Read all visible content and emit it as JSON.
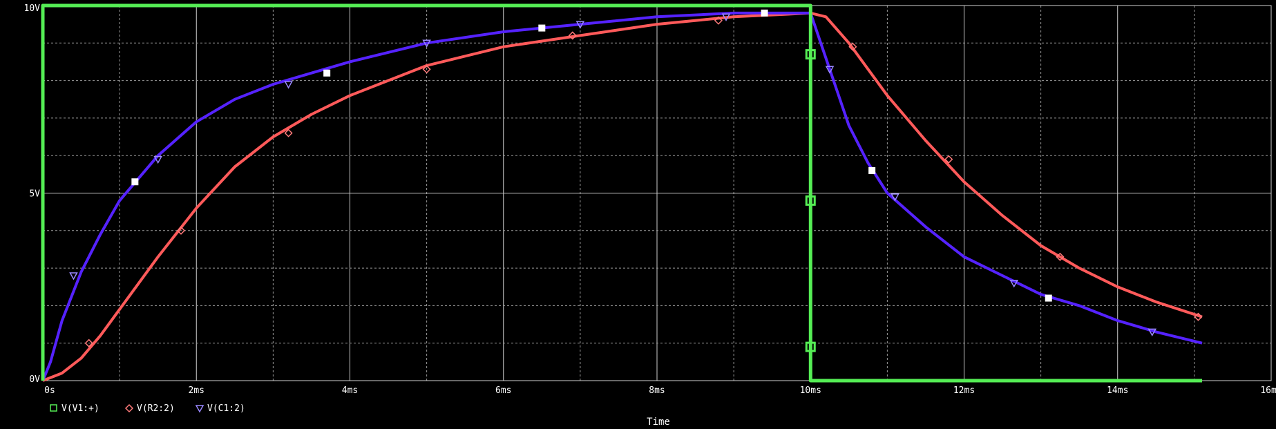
{
  "chart_data": {
    "type": "line",
    "xlabel": "Time",
    "ylabel": "",
    "xlim": [
      0,
      16
    ],
    "ylim": [
      0,
      10
    ],
    "x_ticks": [
      {
        "value": 0,
        "label": "0s"
      },
      {
        "value": 2,
        "label": "2ms"
      },
      {
        "value": 4,
        "label": "4ms"
      },
      {
        "value": 6,
        "label": "6ms"
      },
      {
        "value": 8,
        "label": "8ms"
      },
      {
        "value": 10,
        "label": "10ms"
      },
      {
        "value": 12,
        "label": "12ms"
      },
      {
        "value": 14,
        "label": "14ms"
      },
      {
        "value": 16,
        "label": "16ms"
      }
    ],
    "y_ticks": [
      {
        "value": 0,
        "label": "0V"
      },
      {
        "value": 5,
        "label": "5V"
      },
      {
        "value": 10,
        "label": "10V"
      }
    ],
    "grid": true,
    "legend": "bottom-left",
    "colors": {
      "background": "#000000",
      "grid": "#d0d0d0",
      "v1": "#55ee55",
      "r2": "#ff5a5a",
      "c1": "#5522ff",
      "marker_white": "#ffffff"
    },
    "series": [
      {
        "name": "V(V1:+)",
        "marker": "square",
        "x": [
          0,
          0,
          10,
          10,
          15.1
        ],
        "y": [
          0,
          10,
          10,
          0,
          0
        ],
        "markers_x": [
          10,
          10,
          10
        ],
        "markers_y": [
          8.7,
          4.8,
          0.9
        ]
      },
      {
        "name": "V(R2:2)",
        "marker": "diamond",
        "x": [
          0,
          0.25,
          0.5,
          0.75,
          1,
          1.5,
          2,
          2.5,
          3,
          3.5,
          4,
          5,
          6,
          7,
          8,
          9,
          10,
          10.2,
          10.5,
          11,
          11.5,
          12,
          12.5,
          13,
          13.5,
          14,
          14.5,
          15.1
        ],
        "y": [
          0,
          0.2,
          0.6,
          1.2,
          1.9,
          3.3,
          4.6,
          5.7,
          6.5,
          7.1,
          7.6,
          8.4,
          8.9,
          9.2,
          9.5,
          9.7,
          9.8,
          9.7,
          9.0,
          7.6,
          6.4,
          5.3,
          4.4,
          3.6,
          3.0,
          2.5,
          2.1,
          1.7
        ],
        "markers_x": [
          0.6,
          1.8,
          3.2,
          5.0,
          6.9,
          8.8,
          10.55,
          11.8,
          13.25,
          15.05
        ],
        "markers_y": [
          1.0,
          4.0,
          6.6,
          8.3,
          9.2,
          9.6,
          8.9,
          5.9,
          3.3,
          1.7
        ]
      },
      {
        "name": "V(C1:2)",
        "marker": "triangle",
        "x": [
          0,
          0.1,
          0.25,
          0.5,
          0.75,
          1,
          1.5,
          2,
          2.5,
          3,
          3.5,
          4,
          5,
          6,
          7,
          8,
          9,
          10,
          10.25,
          10.5,
          10.75,
          11,
          11.5,
          12,
          12.5,
          13,
          13.5,
          14,
          14.5,
          15.1
        ],
        "y": [
          0,
          0.5,
          1.6,
          2.9,
          3.9,
          4.8,
          6.0,
          6.9,
          7.5,
          7.9,
          8.2,
          8.5,
          9.0,
          9.3,
          9.5,
          9.7,
          9.8,
          9.8,
          8.3,
          6.8,
          5.8,
          5.0,
          4.1,
          3.3,
          2.8,
          2.3,
          2.0,
          1.6,
          1.3,
          1.0
        ],
        "markers_x": [
          0.4,
          1.5,
          3.2,
          5.0,
          7.0,
          8.9,
          10.25,
          11.1,
          12.65,
          14.45
        ],
        "markers_y": [
          2.8,
          5.9,
          7.9,
          9.0,
          9.5,
          9.7,
          8.3,
          4.9,
          2.6,
          1.3
        ]
      }
    ],
    "white_markers": {
      "x": [
        1.2,
        3.7,
        6.5,
        9.4,
        10.8,
        13.1
      ],
      "y": [
        5.3,
        8.2,
        9.4,
        9.8,
        5.6,
        2.2
      ]
    }
  }
}
